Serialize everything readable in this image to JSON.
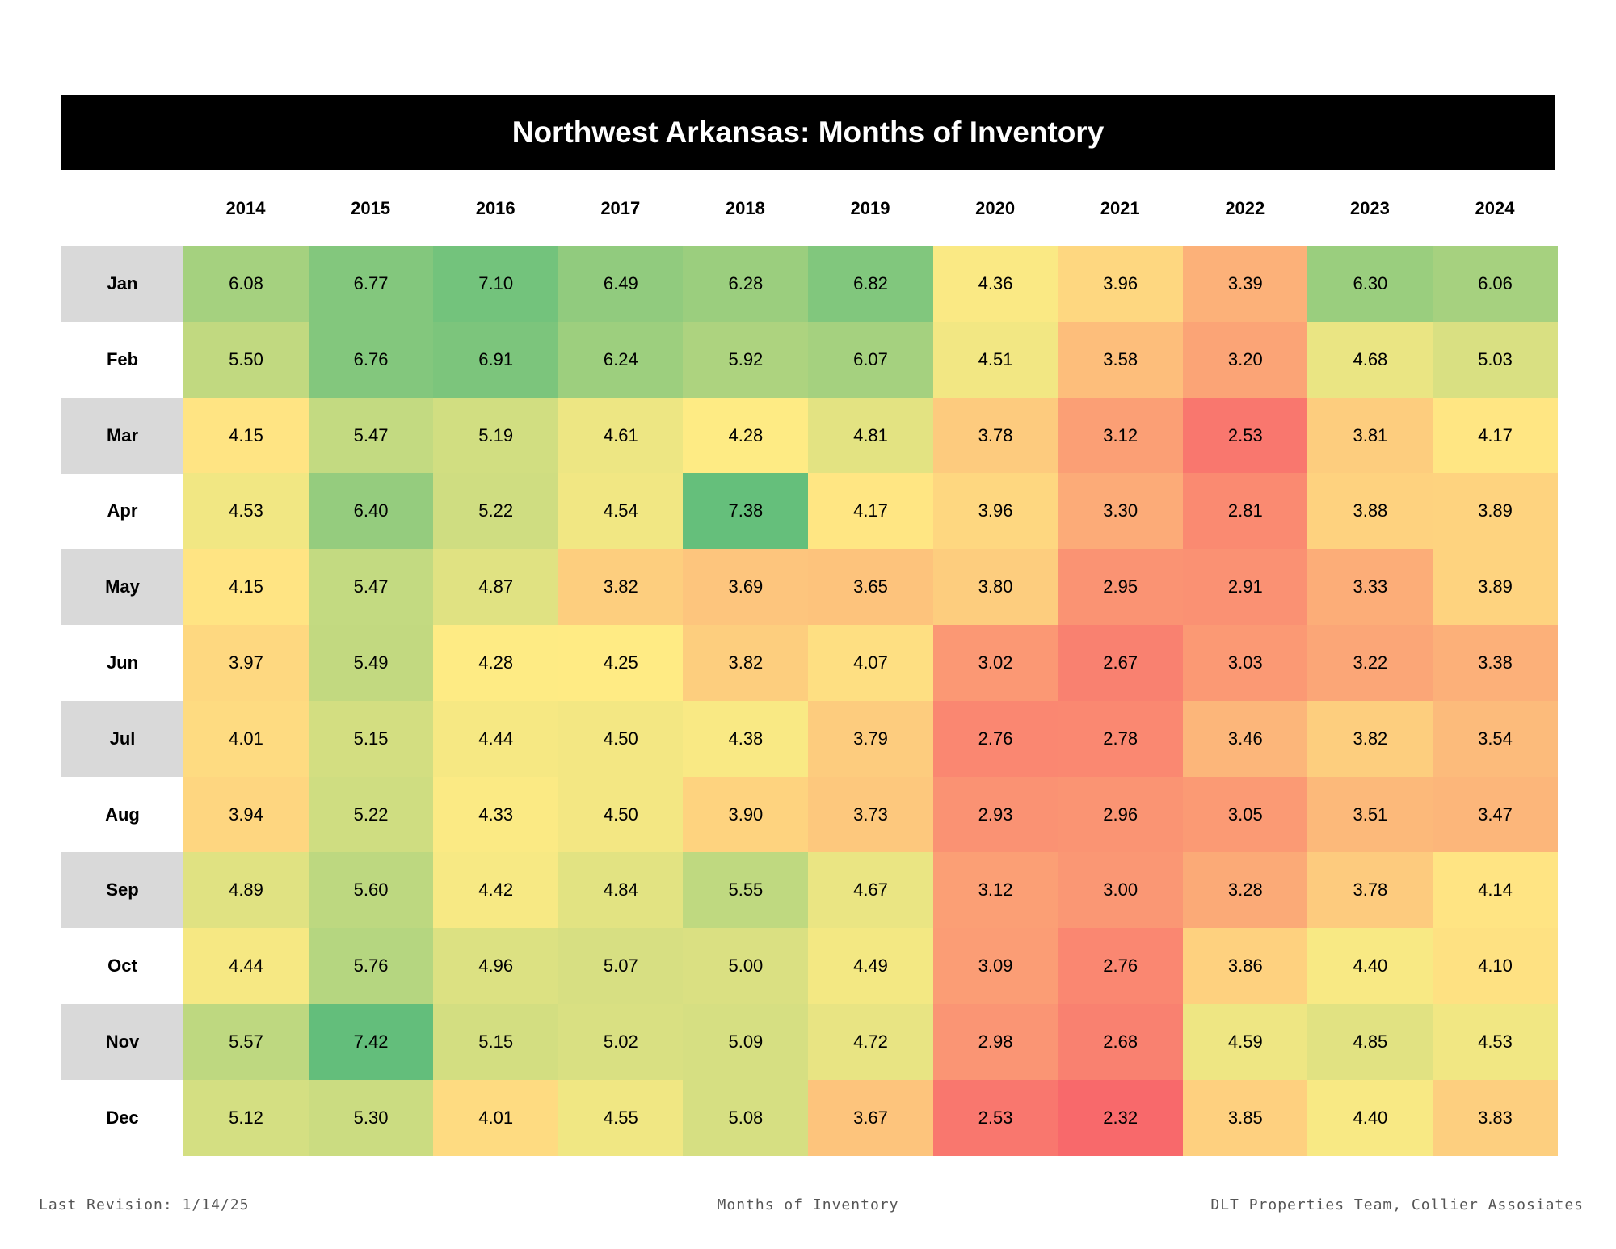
{
  "chart_data": {
    "type": "heatmap",
    "title": "Northwest Arkansas: Months of Inventory",
    "columns": [
      "2014",
      "2015",
      "2016",
      "2017",
      "2018",
      "2019",
      "2020",
      "2021",
      "2022",
      "2023",
      "2024"
    ],
    "rows": [
      "Jan",
      "Feb",
      "Mar",
      "Apr",
      "May",
      "Jun",
      "Jul",
      "Aug",
      "Sep",
      "Oct",
      "Nov",
      "Dec"
    ],
    "values": [
      [
        "6.08",
        "6.77",
        "7.10",
        "6.49",
        "6.28",
        "6.82",
        "4.36",
        "3.96",
        "3.39",
        "6.30",
        "6.06"
      ],
      [
        "5.50",
        "6.76",
        "6.91",
        "6.24",
        "5.92",
        "6.07",
        "4.51",
        "3.58",
        "3.20",
        "4.68",
        "5.03"
      ],
      [
        "4.15",
        "5.47",
        "5.19",
        "4.61",
        "4.28",
        "4.81",
        "3.78",
        "3.12",
        "2.53",
        "3.81",
        "4.17"
      ],
      [
        "4.53",
        "6.40",
        "5.22",
        "4.54",
        "7.38",
        "4.17",
        "3.96",
        "3.30",
        "2.81",
        "3.88",
        "3.89"
      ],
      [
        "4.15",
        "5.47",
        "4.87",
        "3.82",
        "3.69",
        "3.65",
        "3.80",
        "2.95",
        "2.91",
        "3.33",
        "3.89"
      ],
      [
        "3.97",
        "5.49",
        "4.28",
        "4.25",
        "3.82",
        "4.07",
        "3.02",
        "2.67",
        "3.03",
        "3.22",
        "3.38"
      ],
      [
        "4.01",
        "5.15",
        "4.44",
        "4.50",
        "4.38",
        "3.79",
        "2.76",
        "2.78",
        "3.46",
        "3.82",
        "3.54"
      ],
      [
        "3.94",
        "5.22",
        "4.33",
        "4.50",
        "3.90",
        "3.73",
        "2.93",
        "2.96",
        "3.05",
        "3.51",
        "3.47"
      ],
      [
        "4.89",
        "5.60",
        "4.42",
        "4.84",
        "5.55",
        "4.67",
        "3.12",
        "3.00",
        "3.28",
        "3.78",
        "4.14"
      ],
      [
        "4.44",
        "5.76",
        "4.96",
        "5.07",
        "5.00",
        "4.49",
        "3.09",
        "2.76",
        "3.86",
        "4.40",
        "4.10"
      ],
      [
        "5.57",
        "7.42",
        "5.15",
        "5.02",
        "5.09",
        "4.72",
        "2.98",
        "2.68",
        "4.59",
        "4.85",
        "4.53"
      ],
      [
        "5.12",
        "5.30",
        "4.01",
        "4.55",
        "5.08",
        "3.67",
        "2.53",
        "2.32",
        "3.85",
        "4.40",
        "3.83"
      ]
    ],
    "color_scale": {
      "low_color": "#f8696b",
      "mid_color": "#ffeb84",
      "high_color": "#63be7b",
      "low_value": 2.32,
      "mid_value": 4.25,
      "high_value": 7.42
    }
  },
  "footer": {
    "left": "Last Revision: 1/14/25",
    "center": "Months of Inventory",
    "right": "DLT Properties Team, Collier Assosiates"
  }
}
